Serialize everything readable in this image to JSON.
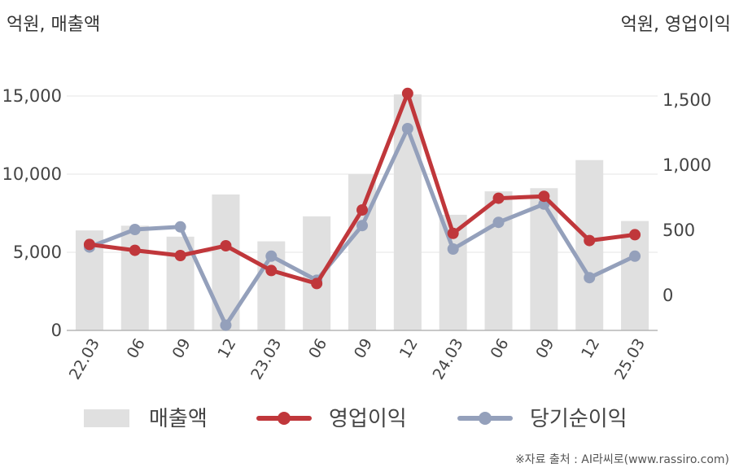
{
  "chart_data": {
    "type": "bar",
    "left_axis_label": "억원, 매출액",
    "right_axis_label": "억원, 영업이익",
    "categories": [
      "22.03",
      "06",
      "09",
      "12",
      "23.03",
      "06",
      "09",
      "12",
      "24.03",
      "06",
      "09",
      "12",
      "25.03"
    ],
    "left_ticks": [
      "15,000",
      "10,000",
      "5,000",
      "0"
    ],
    "right_ticks": [
      "1,500",
      "1,000",
      "500",
      "0"
    ],
    "ylim_left": [
      0,
      15000
    ],
    "ylim_right": [
      -270,
      1530
    ],
    "series": [
      {
        "name": "매출액",
        "type": "bar",
        "axis": "left",
        "color": "#e0e0e0",
        "values": [
          6400,
          6700,
          6000,
          8700,
          5700,
          7300,
          10000,
          15100,
          7400,
          8900,
          9100,
          10900,
          7000
        ]
      },
      {
        "name": "영업이익",
        "type": "line",
        "axis": "right",
        "color": "#c0373b",
        "values": [
          390,
          345,
          305,
          380,
          190,
          90,
          655,
          1550,
          475,
          745,
          760,
          420,
          465
        ]
      },
      {
        "name": "당기순이익",
        "type": "line",
        "axis": "right",
        "color": "#94a0bb",
        "values": [
          370,
          505,
          525,
          -230,
          300,
          115,
          535,
          1280,
          355,
          560,
          700,
          135,
          300
        ]
      }
    ],
    "grid": true,
    "legend_position": "bottom"
  },
  "source": "※자료 출처 : AI라씨로(www.rassiro.com)"
}
